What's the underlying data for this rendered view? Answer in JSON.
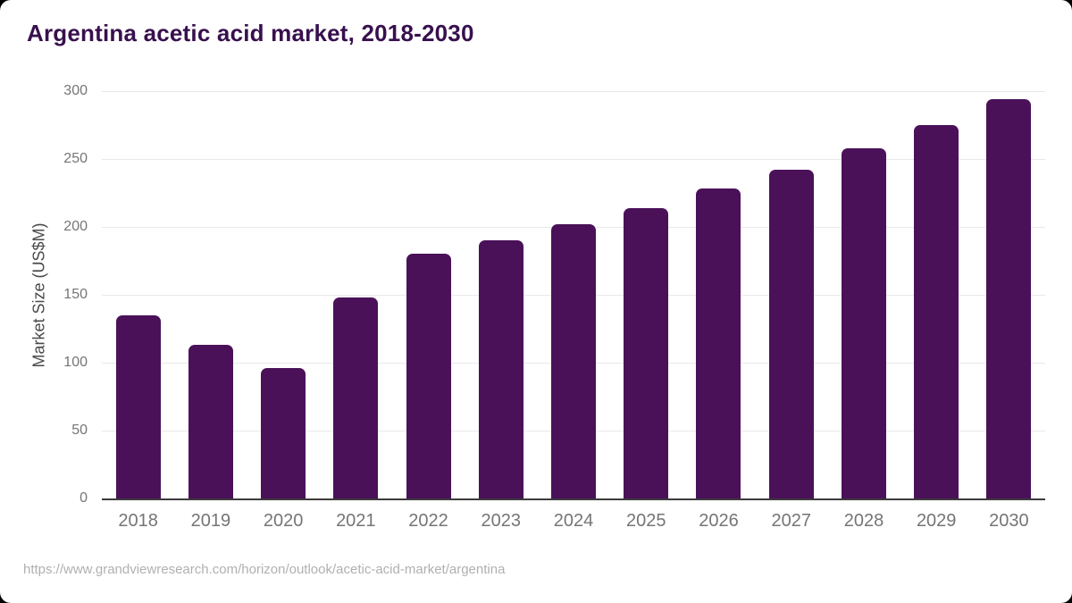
{
  "chart_data": {
    "type": "bar",
    "title": "Argentina acetic acid market, 2018-2030",
    "categories": [
      "2018",
      "2019",
      "2020",
      "2021",
      "2022",
      "2023",
      "2024",
      "2025",
      "2026",
      "2027",
      "2028",
      "2029",
      "2030"
    ],
    "values": [
      135,
      113,
      96,
      148,
      180,
      190,
      202,
      214,
      228,
      242,
      258,
      275,
      294
    ],
    "xlabel": "",
    "ylabel": "Market Size (US$M)",
    "ylim": [
      0,
      300
    ],
    "yticks": [
      0,
      50,
      100,
      150,
      200,
      250,
      300
    ],
    "grid": "horizontal-only",
    "legend": "none",
    "bar_color": "#4a1159"
  },
  "source": {
    "url": "https://www.grandviewresearch.com/horizon/outlook/acetic-acid-market/argentina"
  },
  "colors": {
    "page_background": "#000000",
    "card_background": "#ffffff",
    "title_text": "#38104e",
    "axis_line": "#3c3c3c",
    "gridline": "#e9e9e9",
    "tick_label": "#757575",
    "y_axis_title_text": "#4a4a4a",
    "source_text": "#b0b0b0"
  }
}
